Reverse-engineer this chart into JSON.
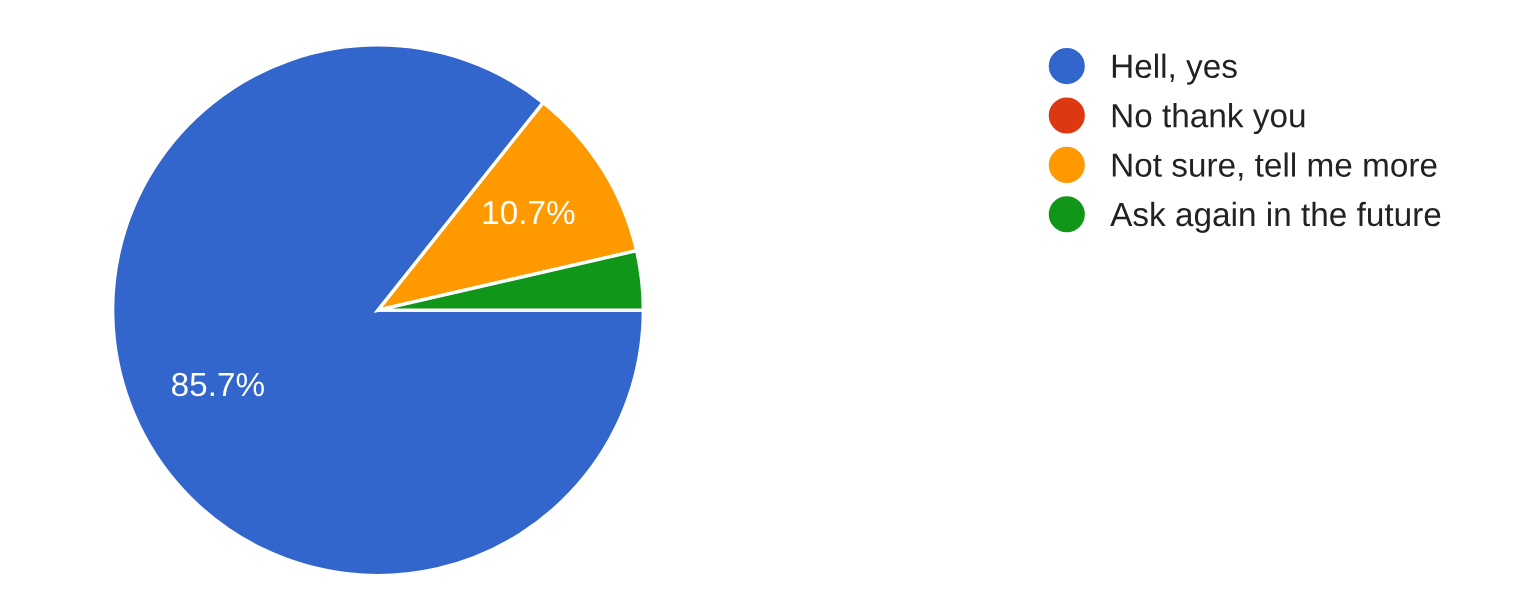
{
  "chart_data": {
    "type": "pie",
    "categories": [
      "Hell, yes",
      "No thank you",
      "Not sure, tell me more",
      "Ask again in the future"
    ],
    "values": [
      85.7,
      0,
      10.7,
      3.6
    ],
    "colors": [
      "#3366cc",
      "#dc3912",
      "#ff9900",
      "#109618"
    ],
    "value_labels": [
      "85.7%",
      null,
      "10.7%",
      null
    ],
    "legend": "right"
  }
}
